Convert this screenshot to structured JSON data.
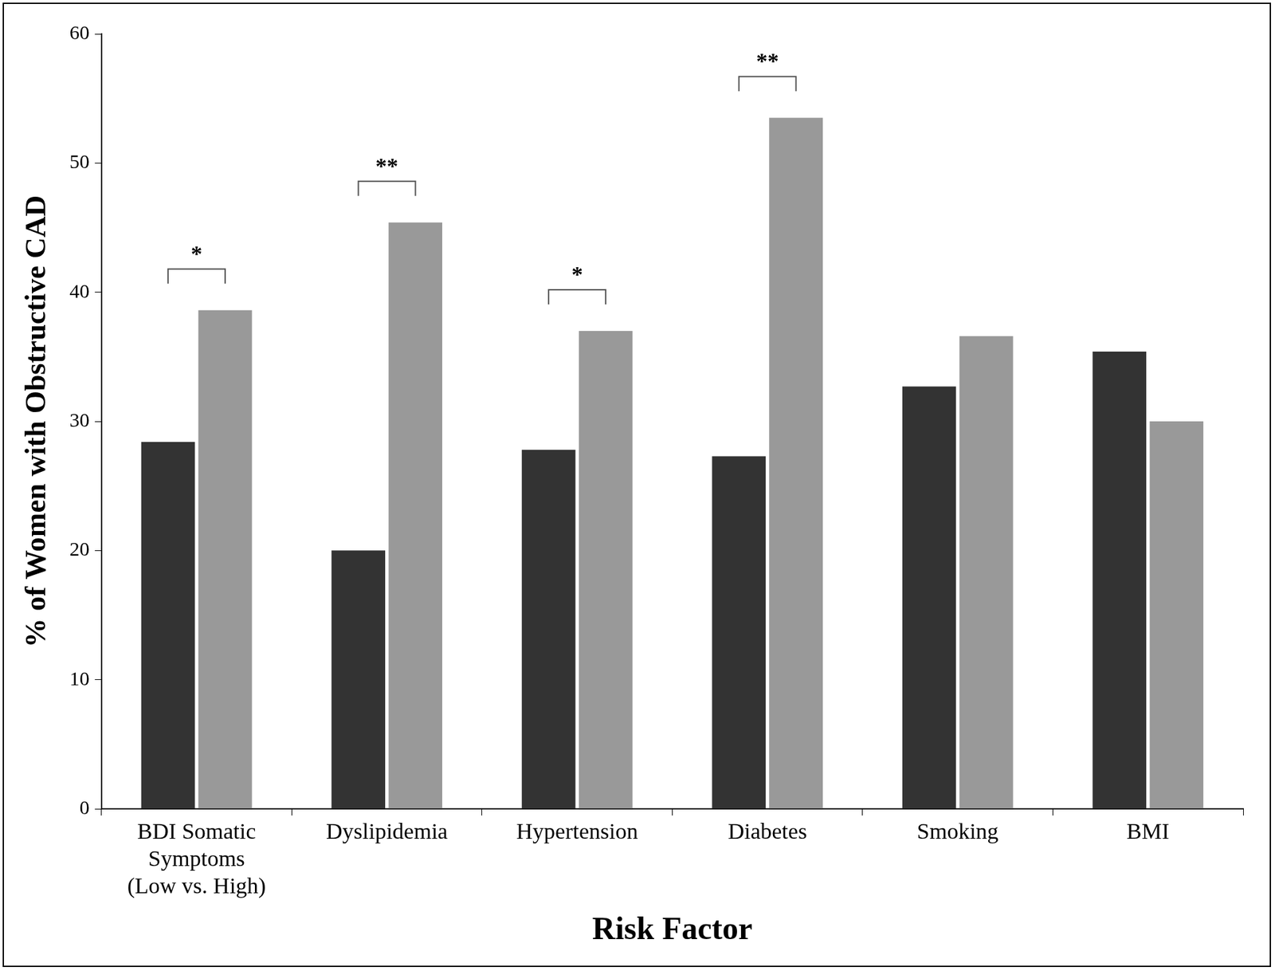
{
  "chart_data": {
    "type": "bar",
    "categories": [
      [
        "BDI Somatic",
        "Symptoms",
        "(Low vs. High)"
      ],
      "Dyslipidemia",
      "Hypertension",
      "Diabetes",
      "Smoking",
      "BMI"
    ],
    "series": [
      {
        "color": "#333333",
        "values": [
          28.4,
          20,
          27.8,
          27.3,
          32.7,
          35.4
        ]
      },
      {
        "color": "#999999",
        "values": [
          38.6,
          45.4,
          37,
          53.5,
          36.6,
          30
        ]
      }
    ],
    "annotations": [
      "*",
      "**",
      "*",
      "**",
      null,
      null
    ],
    "x_label": "Risk Factor",
    "y_label": "% of Women with Obstructive CAD",
    "ylim": [
      0,
      60
    ],
    "yticks": [
      0,
      10,
      20,
      30,
      40,
      50,
      60
    ],
    "grid": false
  }
}
